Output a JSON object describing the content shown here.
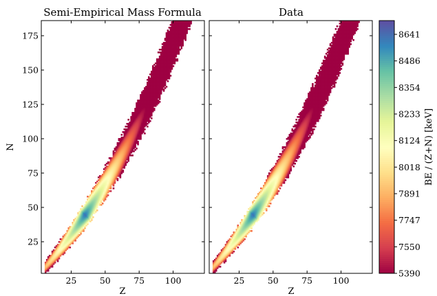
{
  "chart_data": [
    {
      "type": "heatmap",
      "title": "Semi-Empirical Mass Formula",
      "xlabel": "Z",
      "ylabel": "N",
      "xlim": [
        3,
        123
      ],
      "ylim": [
        2,
        186
      ],
      "x_ticks": [
        25,
        50,
        75,
        100
      ],
      "y_ticks": [
        25,
        50,
        75,
        100,
        125,
        150,
        175
      ],
      "x_tick_labels": [
        "25",
        "50",
        "75",
        "100"
      ],
      "y_tick_labels": [
        "25",
        "50",
        "75",
        "100",
        "125",
        "150",
        "175"
      ],
      "grid": false
    },
    {
      "type": "heatmap",
      "title": "Data",
      "xlabel": "Z",
      "ylabel": "",
      "xlim": [
        3,
        123
      ],
      "ylim": [
        2,
        186
      ],
      "x_ticks": [
        25,
        50,
        75,
        100
      ],
      "x_tick_labels": [
        "25",
        "50",
        "75",
        "100"
      ],
      "grid": false
    }
  ],
  "colorbar": {
    "label": "BE / (Z+N) [keV]",
    "tick_labels": [
      "5390",
      "7550",
      "7747",
      "7891",
      "8018",
      "8124",
      "8233",
      "8354",
      "8486",
      "8641"
    ],
    "colormap": "Spectral",
    "colors": [
      "#9e0142",
      "#d53e4f",
      "#f46d43",
      "#fdae61",
      "#fee08b",
      "#ffffbf",
      "#e6f598",
      "#abdda4",
      "#66c2a5",
      "#3288bd",
      "#5e4fa2"
    ]
  }
}
